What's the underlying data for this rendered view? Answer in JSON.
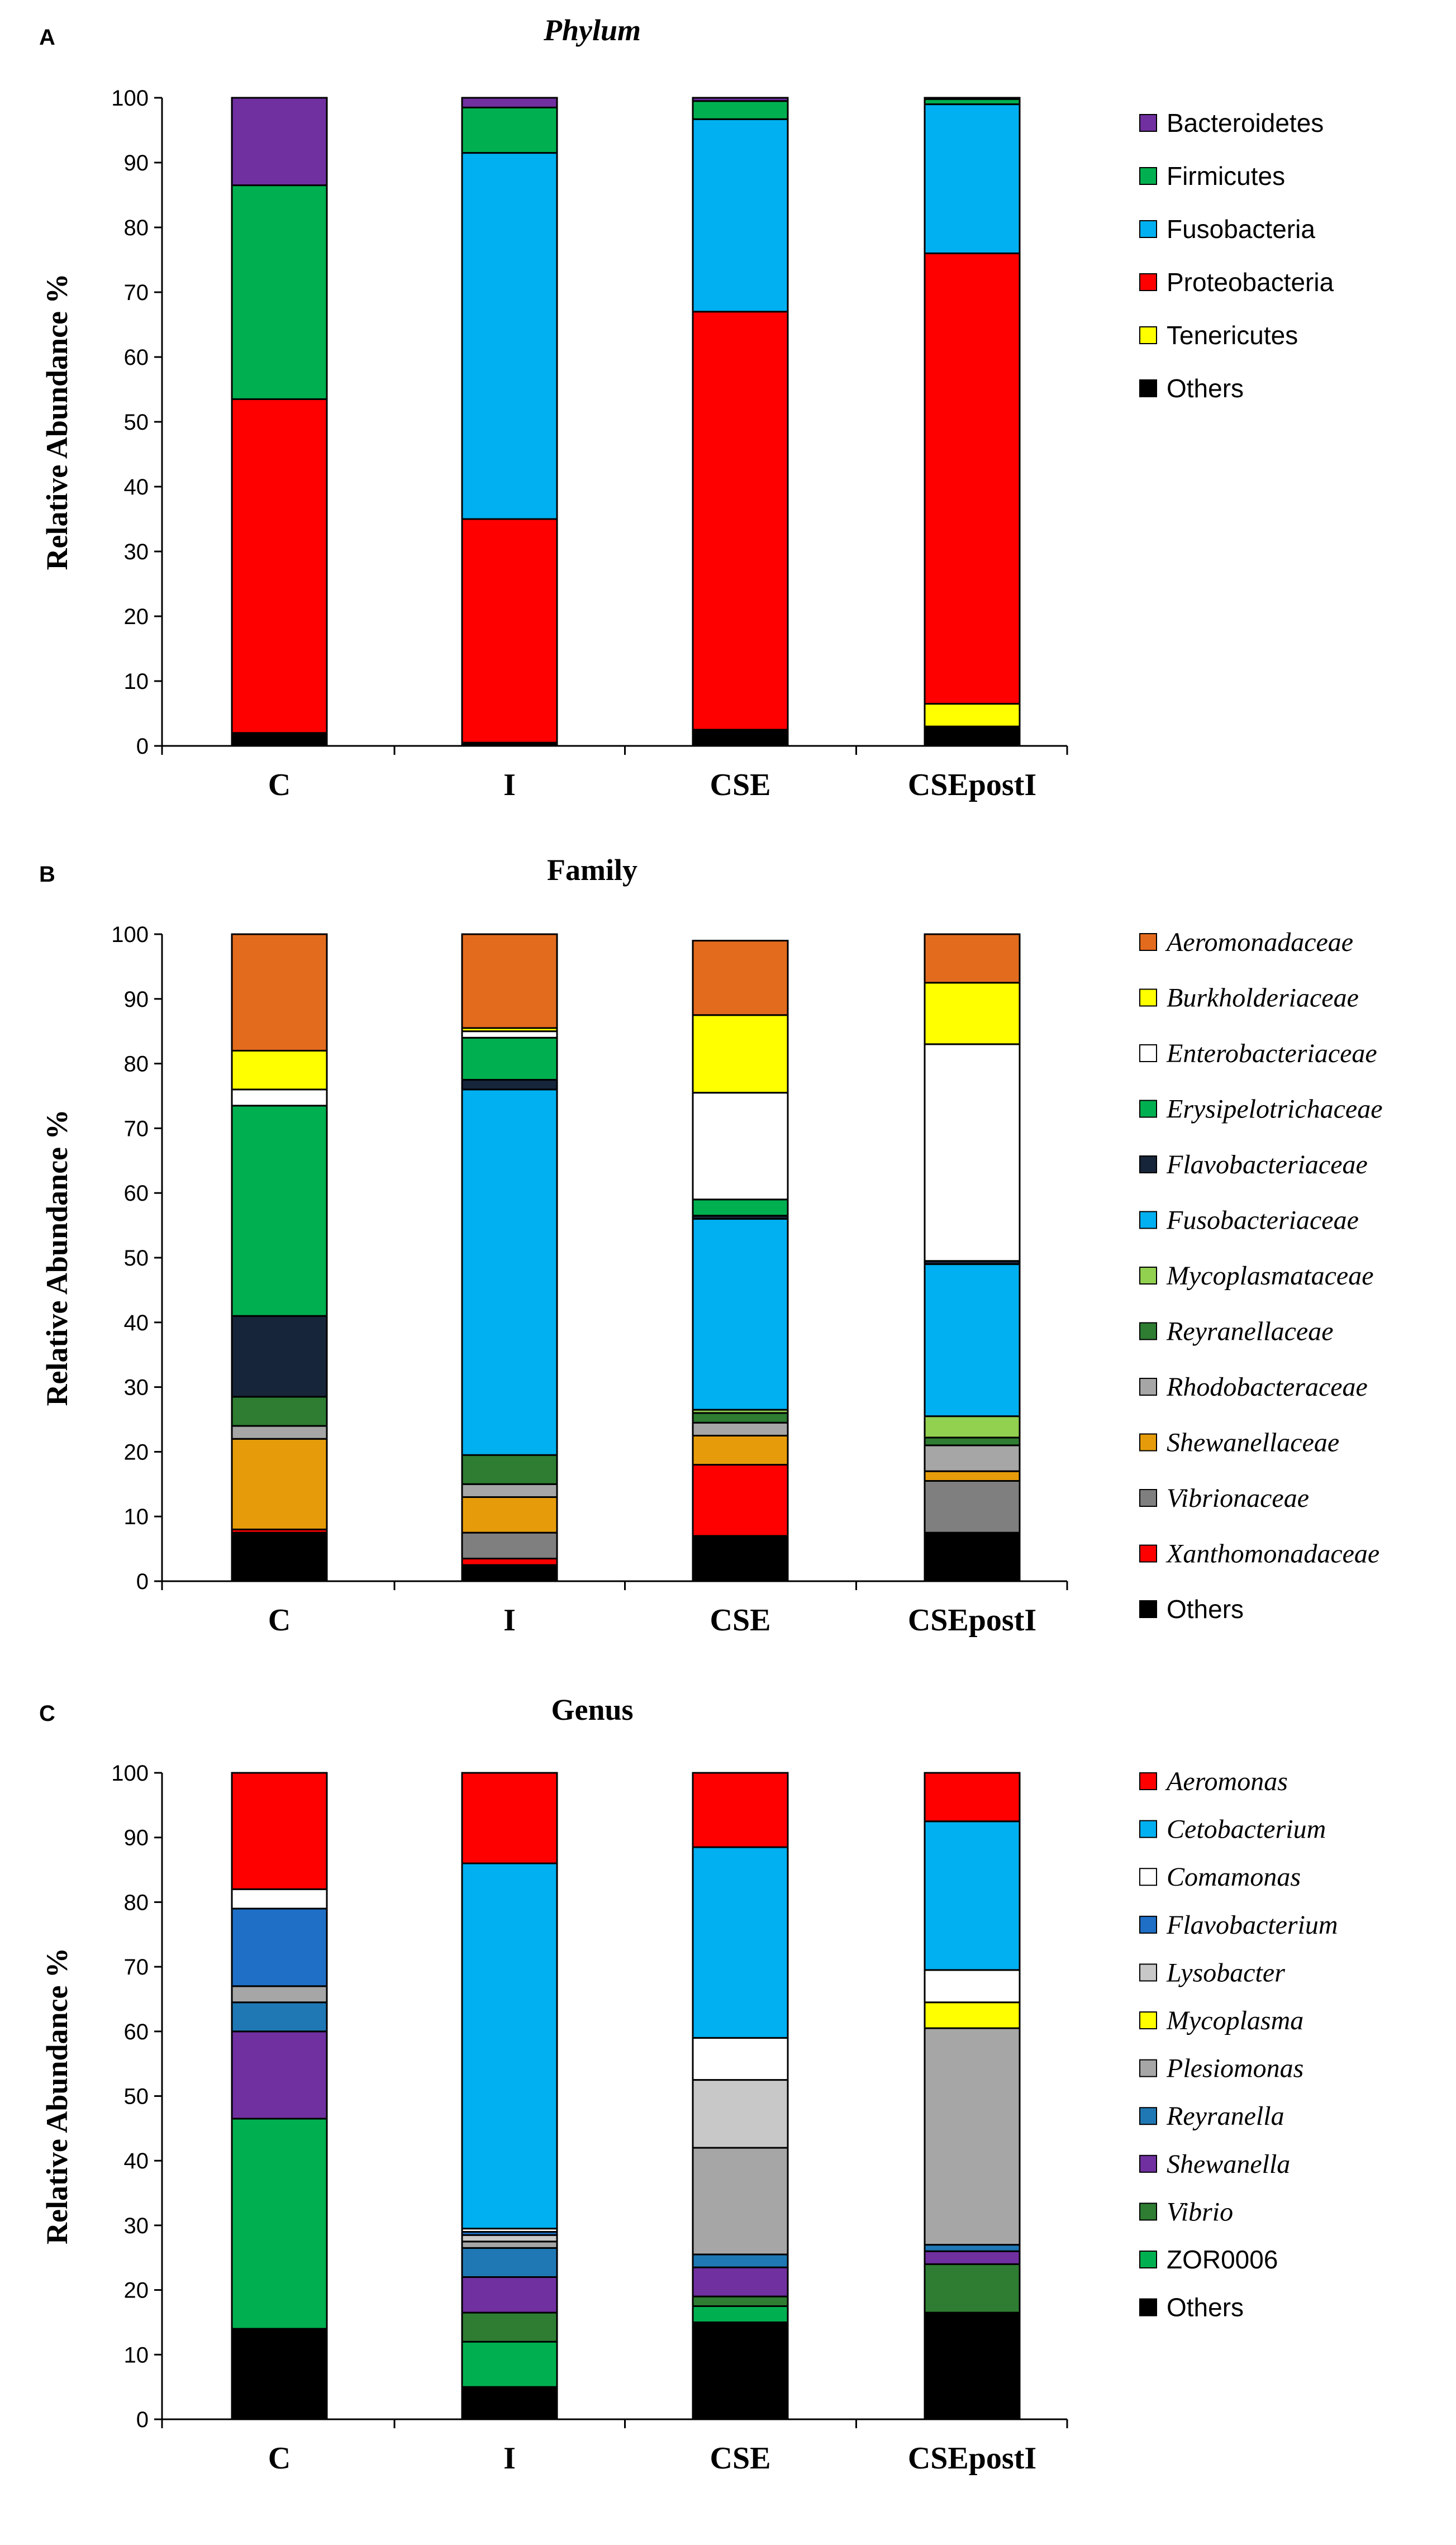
{
  "chart_data": [
    {
      "type": "bar",
      "stacked": true,
      "panel": "A",
      "title": "Phylum",
      "title_italic": true,
      "ylabel": "Relative Abundance %",
      "xlabel": "",
      "ylim": [
        0,
        100
      ],
      "yticks": [
        "0",
        "10",
        "20",
        "30",
        "40",
        "50",
        "60",
        "70",
        "80",
        "90",
        "100"
      ],
      "legend_italic": false,
      "categories": [
        "C",
        "I",
        "CSE",
        "CSEpostI"
      ],
      "series": [
        {
          "name": "Others",
          "color": "#000000",
          "values": [
            2,
            0.5,
            2.5,
            3
          ]
        },
        {
          "name": "Tenericutes",
          "color": "#ffff00",
          "values": [
            0,
            0,
            0,
            3.5
          ]
        },
        {
          "name": "Proteobacteria",
          "color": "#ff0000",
          "values": [
            51.5,
            34.5,
            64.5,
            69.5
          ]
        },
        {
          "name": "Fusobacteria",
          "color": "#00b0f0",
          "values": [
            0,
            56.5,
            29.7,
            23
          ]
        },
        {
          "name": "Firmicutes",
          "color": "#00b050",
          "values": [
            33,
            7,
            2.8,
            0.8
          ]
        },
        {
          "name": "Bacteroidetes",
          "color": "#7030a0",
          "values": [
            13.5,
            1.5,
            0.5,
            0.2
          ]
        }
      ]
    },
    {
      "type": "bar",
      "stacked": true,
      "panel": "B",
      "title": "Family",
      "title_italic": false,
      "ylabel": "Relative Abundance %",
      "xlabel": "",
      "ylim": [
        0,
        100
      ],
      "yticks": [
        "0",
        "10",
        "20",
        "30",
        "40",
        "50",
        "60",
        "70",
        "80",
        "90",
        "100"
      ],
      "legend_italic": true,
      "categories": [
        "C",
        "I",
        "CSE",
        "CSEpostI"
      ],
      "series": [
        {
          "name": "Others",
          "color": "#000000",
          "values": [
            7.5,
            2.5,
            7,
            7.5
          ]
        },
        {
          "name": "Xanthomonadaceae",
          "color": "#ff0000",
          "values": [
            0.5,
            1,
            11,
            0
          ]
        },
        {
          "name": "Vibrionaceae",
          "color": "#7f7f7f",
          "values": [
            0,
            4,
            0,
            8
          ]
        },
        {
          "name": "Shewanellaceae",
          "color": "#e69c0a",
          "values": [
            14,
            5.5,
            4.5,
            1.5
          ]
        },
        {
          "name": "Rhodobacteraceae",
          "color": "#a6a6a6",
          "values": [
            2,
            2,
            2,
            4
          ]
        },
        {
          "name": "Reyranellaceae",
          "color": "#2e7d32",
          "values": [
            4.5,
            4.5,
            1.5,
            1.2
          ]
        },
        {
          "name": "Mycoplasmataceae",
          "color": "#92d050",
          "values": [
            0,
            0,
            0.5,
            3.3
          ]
        },
        {
          "name": "Fusobacteriaceae",
          "color": "#00b0f0",
          "values": [
            0,
            56.5,
            29.5,
            23.5
          ]
        },
        {
          "name": "Flavobacteriaceae",
          "color": "#17253a",
          "values": [
            12.5,
            1.5,
            0.5,
            0.5
          ]
        },
        {
          "name": "Erysipelotrichaceae",
          "color": "#00b050",
          "values": [
            32.5,
            6.5,
            2.5,
            0
          ]
        },
        {
          "name": "Enterobacteriaceae",
          "color": "#ffffff",
          "values": [
            2.5,
            1,
            16.5,
            33.5
          ]
        },
        {
          "name": "Burkholderiaceae",
          "color": "#ffff00",
          "values": [
            6,
            0.5,
            12,
            9.5
          ]
        },
        {
          "name": "Aeromonadaceae",
          "color": "#e36b1e",
          "values": [
            18,
            14.5,
            11.5,
            7.5
          ]
        }
      ]
    },
    {
      "type": "bar",
      "stacked": true,
      "panel": "C",
      "title": "Genus",
      "title_italic": false,
      "ylabel": "Relative Abundance %",
      "xlabel": "",
      "ylim": [
        0,
        100
      ],
      "yticks": [
        "0",
        "10",
        "20",
        "30",
        "40",
        "50",
        "60",
        "70",
        "80",
        "90",
        "100"
      ],
      "legend_italic": true,
      "categories": [
        "C",
        "I",
        "CSE",
        "CSEpostI"
      ],
      "series": [
        {
          "name": "Others",
          "color": "#000000",
          "values": [
            14,
            5,
            15,
            16.5
          ]
        },
        {
          "name": "ZOR0006",
          "color": "#00b050",
          "values": [
            32.5,
            7,
            2.5,
            0
          ],
          "italic": false
        },
        {
          "name": "Vibrio",
          "color": "#2e7d32",
          "values": [
            0,
            4.5,
            1.5,
            7.5
          ]
        },
        {
          "name": "Shewanella",
          "color": "#7030a0",
          "values": [
            13.5,
            5.5,
            4.5,
            2
          ]
        },
        {
          "name": "Reyranella",
          "color": "#1f78b4",
          "values": [
            4.5,
            4.5,
            2,
            1
          ]
        },
        {
          "name": "Plesiomonas",
          "color": "#a6a6a6",
          "values": [
            2.5,
            1,
            16.5,
            33.5
          ]
        },
        {
          "name": "Mycoplasma",
          "color": "#ffff00",
          "values": [
            0,
            0,
            0,
            4
          ]
        },
        {
          "name": "Lysobacter",
          "color": "#c8c8c8",
          "values": [
            0,
            1,
            10.5,
            0
          ]
        },
        {
          "name": "Flavobacterium",
          "color": "#1f6fc6",
          "values": [
            12,
            0.5,
            0,
            0
          ]
        },
        {
          "name": "Comamonas",
          "color": "#ffffff",
          "values": [
            3,
            0.5,
            6.5,
            5
          ]
        },
        {
          "name": "Cetobacterium",
          "color": "#00b0f0",
          "values": [
            0,
            56.5,
            29.5,
            23
          ]
        },
        {
          "name": "Aeromonas",
          "color": "#ff0000",
          "values": [
            18,
            14,
            11.5,
            7.5
          ]
        }
      ]
    }
  ]
}
